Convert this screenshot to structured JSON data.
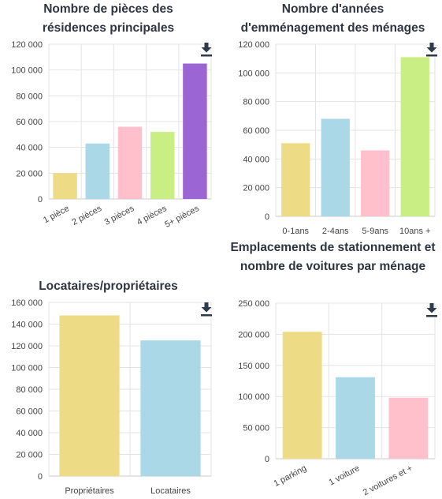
{
  "chart_data": [
    {
      "type": "bar",
      "title": "Nombre de pièces des résidences principales",
      "categories": [
        "1 pièce",
        "2 pièces",
        "3 pièces",
        "4 pièces",
        "5+ pièces"
      ],
      "values": [
        20000,
        43000,
        56000,
        52000,
        105000
      ],
      "colors": [
        "#eddc85",
        "#aad8e6",
        "#ffc0cb",
        "#c8ee84",
        "#9b66d3"
      ],
      "yticks": [
        "0",
        "20 000",
        "40 000",
        "60 000",
        "80 000",
        "100 000",
        "120 000"
      ],
      "ylim": [
        0,
        120000
      ],
      "xlabel": "",
      "ylabel": "",
      "grid": true,
      "rotated_labels": true,
      "download_icon": "download-icon"
    },
    {
      "type": "bar",
      "title": "Nombre d'années d'emménagement des ménages",
      "categories": [
        "0-1ans",
        "2-4ans",
        "5-9ans",
        "10ans +"
      ],
      "values": [
        51000,
        68000,
        46000,
        111000
      ],
      "colors": [
        "#eddc85",
        "#aad8e6",
        "#ffc0cb",
        "#c8ee84"
      ],
      "yticks": [
        "0",
        "20 000",
        "40 000",
        "60 000",
        "80 000",
        "100 000",
        "120 000"
      ],
      "ylim": [
        0,
        120000
      ],
      "xlabel": "",
      "ylabel": "",
      "grid": true,
      "rotated_labels": false,
      "download_icon": "download-icon"
    },
    {
      "type": "bar",
      "title": "Locataires/propriétaires",
      "categories": [
        "Propriétaires",
        "Locataires"
      ],
      "values": [
        148000,
        125000
      ],
      "colors": [
        "#eddc85",
        "#aad8e6"
      ],
      "yticks": [
        "0",
        "20 000",
        "40 000",
        "60 000",
        "80 000",
        "100 000",
        "120 000",
        "140 000",
        "160 000"
      ],
      "ylim": [
        0,
        160000
      ],
      "xlabel": "",
      "ylabel": "",
      "grid": true,
      "rotated_labels": false,
      "download_icon": "download-icon"
    },
    {
      "type": "bar",
      "title": "Emplacements de stationnement et nombre de voitures par ménage",
      "categories": [
        "1 parking",
        "1 voiture",
        "2 voitures et +"
      ],
      "values": [
        204000,
        131000,
        98000
      ],
      "colors": [
        "#eddc85",
        "#aad8e6",
        "#ffc0cb"
      ],
      "yticks": [
        "0",
        "50 000",
        "100 000",
        "150 000",
        "200 000",
        "250 000"
      ],
      "ylim": [
        0,
        250000
      ],
      "xlabel": "",
      "ylabel": "",
      "grid": true,
      "rotated_labels": true,
      "download_icon": "download-icon"
    }
  ]
}
